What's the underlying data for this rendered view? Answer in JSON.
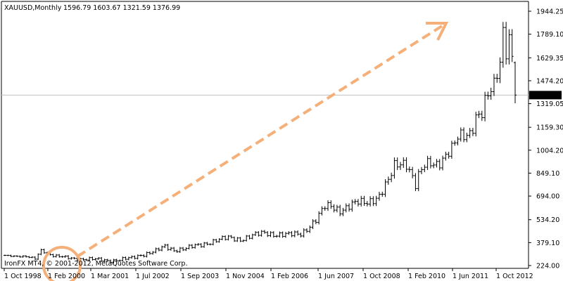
{
  "header": {
    "symbol_timeframe": "XAUUSD,Monthly",
    "ohlc": "1596.79 1603.67 1321.59 1376.99"
  },
  "footer": {
    "copyright": "IronFX MT4, © 2001-2012, MetaQuotes Software Corp."
  },
  "colors": {
    "background": "#ffffff",
    "bars": "#000000",
    "price_line": "#c0c0c0",
    "price_label_bg": "#000000",
    "price_label_text": "#ffffff",
    "arrow": "#f5b07a",
    "highlight_circle": "#f5b07a"
  },
  "chart_data": {
    "type": "ohlc",
    "title": "XAUUSD,Monthly",
    "timeframe": "Monthly",
    "grid": false,
    "x_tick_labels": [
      "1 Oct 1998",
      "1 Feb 2000",
      "1 Mar 2001",
      "1 Jul 2002",
      "1 Sep 2003",
      "1 Nov 2004",
      "1 Feb 2006",
      "1 Jun 2007",
      "1 Oct 2008",
      "1 Feb 2010",
      "1 Jun 2011",
      "1 Oct 2012"
    ],
    "y_tick_labels": [
      "1944.25",
      "1789.10",
      "1629.35",
      "1474.20",
      "1319.05",
      "1159.30",
      "1004.20",
      "849.10",
      "694.00",
      "534.20",
      "379.10",
      "224.00"
    ],
    "ylim": [
      224.0,
      1944.25
    ],
    "current_price": "1376.99",
    "current_price_value": 1376.99,
    "last_bar": {
      "open": 1596.79,
      "high": 1603.67,
      "low": 1321.59,
      "close": 1376.99
    },
    "bar_count": 170,
    "waypoints": [
      [
        0,
        293
      ],
      [
        7,
        283
      ],
      [
        10,
        270
      ],
      [
        12,
        330
      ],
      [
        16,
        290
      ],
      [
        20,
        278
      ],
      [
        25,
        268
      ],
      [
        30,
        265
      ],
      [
        35,
        258
      ],
      [
        38,
        262
      ],
      [
        42,
        275
      ],
      [
        45,
        296
      ],
      [
        50,
        322
      ],
      [
        53,
        352
      ],
      [
        56,
        330
      ],
      [
        60,
        340
      ],
      [
        65,
        365
      ],
      [
        70,
        395
      ],
      [
        74,
        410
      ],
      [
        78,
        402
      ],
      [
        82,
        425
      ],
      [
        86,
        445
      ],
      [
        90,
        435
      ],
      [
        94,
        430
      ],
      [
        98,
        440
      ],
      [
        100,
        475
      ],
      [
        103,
        530
      ],
      [
        106,
        620
      ],
      [
        108,
        630
      ],
      [
        111,
        600
      ],
      [
        114,
        620
      ],
      [
        117,
        650
      ],
      [
        120,
        660
      ],
      [
        124,
        690
      ],
      [
        127,
        790
      ],
      [
        129,
        900
      ],
      [
        131,
        930
      ],
      [
        133,
        920
      ],
      [
        134,
        870
      ],
      [
        136,
        760
      ],
      [
        137,
        820
      ],
      [
        139,
        900
      ],
      [
        141,
        930
      ],
      [
        143,
        920
      ],
      [
        145,
        940
      ],
      [
        148,
        1000
      ],
      [
        150,
        1090
      ],
      [
        152,
        1120
      ],
      [
        154,
        1130
      ],
      [
        156,
        1220
      ],
      [
        158,
        1240
      ],
      [
        160,
        1370
      ],
      [
        161,
        1410
      ],
      [
        162,
        1450
      ],
      [
        163,
        1560
      ],
      [
        164,
        1620
      ],
      [
        165,
        1830
      ],
      [
        166,
        1700
      ],
      [
        167,
        1740
      ],
      [
        168,
        1620
      ],
      [
        169,
        1377
      ]
    ],
    "annotations": [
      "arrow",
      "highlight-circle"
    ]
  }
}
